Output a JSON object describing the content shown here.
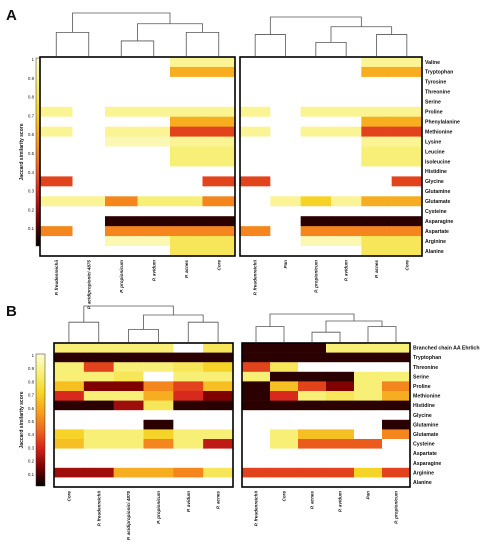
{
  "scale": {
    "title": "Jaccard similarity score",
    "ticks": [
      "1",
      "0.9",
      "0.8",
      "0.7",
      "0.6",
      "0.5",
      "0.4",
      "0.3",
      "0.2",
      "0.1"
    ],
    "colors": [
      "#000000",
      "#7a0000",
      "#d6221c",
      "#f06a1c",
      "#f7a21e",
      "#f5d828",
      "#f8f07a",
      "#fdfdd2"
    ]
  },
  "chart_data": [
    {
      "type": "heatmap",
      "panel": "A",
      "y": [
        "Valine",
        "Tryptophan",
        "Tyrosine",
        "Threonine",
        "Serine",
        "Proline",
        "Phenylalanine",
        "Methionine",
        "Lysine",
        "Leucine",
        "Isoleucine",
        "Histidine",
        "Glycine",
        "Glutamine",
        "Glutamate",
        "Cysteine",
        "Asparagine",
        "Aspartate",
        "Arginine",
        "Alanine"
      ],
      "heatmaps": [
        {
          "x": [
            "P. freudenreichii",
            "P. acidipropionici 4875",
            "P. propionicum",
            "P. avidum",
            "P. acnes",
            "Core"
          ],
          "values": [
            [
              0,
              0,
              0,
              0,
              0.9,
              0.9
            ],
            [
              0,
              0,
              0,
              0,
              0.6,
              0.6
            ],
            [
              0,
              0,
              0,
              0,
              0,
              0
            ],
            [
              0,
              0,
              0,
              0,
              0,
              0
            ],
            [
              0,
              0,
              0,
              0,
              0,
              0
            ],
            [
              0.9,
              0,
              0.9,
              0.9,
              0.9,
              0.9
            ],
            [
              0,
              0,
              0,
              0,
              0.6,
              0.6
            ],
            [
              0.9,
              0,
              0.9,
              0.9,
              0.35,
              0.35
            ],
            [
              0,
              0,
              0.95,
              0.95,
              0.9,
              0.9
            ],
            [
              0,
              0,
              0,
              0,
              0.85,
              0.85
            ],
            [
              0,
              0,
              0,
              0,
              0.85,
              0.85
            ],
            [
              0,
              0,
              0,
              0,
              0,
              0
            ],
            [
              0.35,
              0,
              0,
              0,
              0,
              0.35
            ],
            [
              0,
              0,
              0,
              0,
              0,
              0
            ],
            [
              0.9,
              0.9,
              0.5,
              0.85,
              0.85,
              0.5
            ],
            [
              0,
              0,
              0,
              0,
              0,
              0
            ],
            [
              0,
              0,
              0.05,
              0.05,
              0.05,
              0.05
            ],
            [
              0.5,
              0,
              0.5,
              0.5,
              0.5,
              0.5
            ],
            [
              0,
              0,
              0.95,
              0.95,
              0.8,
              0.8
            ],
            [
              0,
              0,
              0,
              0,
              0.8,
              0.8
            ]
          ]
        },
        {
          "x": [
            "P. freudenreichii",
            "Pan",
            "P. propionicum",
            "P. avidum",
            "P. acnes",
            "Core"
          ],
          "values": [
            [
              0,
              0,
              0,
              0,
              0.9,
              0.9
            ],
            [
              0,
              0,
              0,
              0,
              0.6,
              0.6
            ],
            [
              0,
              0,
              0,
              0,
              0,
              0
            ],
            [
              0,
              0,
              0,
              0,
              0,
              0
            ],
            [
              0,
              0,
              0,
              0,
              0,
              0
            ],
            [
              0.9,
              0,
              0.9,
              0.9,
              0.9,
              0.9
            ],
            [
              0,
              0,
              0,
              0,
              0.6,
              0.6
            ],
            [
              0.9,
              0,
              0.9,
              0.9,
              0.35,
              0.35
            ],
            [
              0,
              0,
              0,
              0,
              0.9,
              0.9
            ],
            [
              0,
              0,
              0,
              0,
              0.85,
              0.85
            ],
            [
              0,
              0,
              0,
              0,
              0.85,
              0.85
            ],
            [
              0,
              0,
              0,
              0,
              0,
              0
            ],
            [
              0.35,
              0,
              0,
              0,
              0,
              0.35
            ],
            [
              0,
              0,
              0,
              0,
              0,
              0
            ],
            [
              0,
              0.9,
              0.7,
              0.9,
              0.6,
              0.6
            ],
            [
              0,
              0,
              0,
              0,
              0,
              0
            ],
            [
              0,
              0,
              0.05,
              0.05,
              0.05,
              0.05
            ],
            [
              0.5,
              0,
              0.5,
              0.5,
              0.5,
              0.5
            ],
            [
              0,
              0,
              0.95,
              0.95,
              0.8,
              0.8
            ],
            [
              0,
              0,
              0,
              0,
              0.8,
              0.8
            ]
          ]
        }
      ]
    },
    {
      "type": "heatmap",
      "panel": "B",
      "y": [
        "Branched chain AA Ehrlich",
        "Tryptophan",
        "Threonine",
        "Serine",
        "Proline",
        "Methionine",
        "Histidine",
        "Glycine",
        "Glutamine",
        "Glutamate",
        "Cysteine",
        "Aspartate",
        "Asparagine",
        "Arginine",
        "Alanine"
      ],
      "heatmaps": [
        {
          "x": [
            "Core",
            "P. freudenreichii",
            "P. acidipropionici 4875",
            "P. propionicum",
            "P. avidum",
            "P. acnes"
          ],
          "values": [
            [
              0.85,
              0.85,
              0.85,
              0.85,
              0,
              0.8
            ],
            [
              0.05,
              0.05,
              0.05,
              0.05,
              0.05,
              0.05
            ],
            [
              0.85,
              0.35,
              0.85,
              0.85,
              0.8,
              0.7
            ],
            [
              0.85,
              0.85,
              0.8,
              0,
              0.85,
              0.85
            ],
            [
              0.65,
              0.15,
              0.15,
              0.5,
              0.35,
              0.65
            ],
            [
              0.3,
              0.85,
              0.85,
              0.6,
              0.3,
              0.15
            ],
            [
              0.05,
              0.05,
              0.2,
              0.8,
              0.05,
              0.05
            ],
            [
              0,
              0,
              0,
              0,
              0,
              0
            ],
            [
              0,
              0,
              0,
              0.05,
              0,
              0
            ],
            [
              0.7,
              0.85,
              0.85,
              0.7,
              0.85,
              0.85
            ],
            [
              0.65,
              0.85,
              0.85,
              0.5,
              0.85,
              0.25
            ],
            [
              0,
              0,
              0,
              0,
              0,
              0
            ],
            [
              0,
              0,
              0,
              0,
              0,
              0
            ],
            [
              0.2,
              0.2,
              0.6,
              0.6,
              0.5,
              0.8
            ],
            [
              0,
              0,
              0,
              0,
              0,
              0
            ]
          ]
        },
        {
          "x": [
            "P. freudenreichii",
            "Core",
            "P. acnes",
            "P. avidum",
            "Pan",
            "P. propionicum"
          ],
          "values": [
            [
              0.05,
              0.05,
              0.05,
              0.85,
              0.85,
              0.85
            ],
            [
              0.05,
              0.05,
              0.05,
              0.05,
              0.05,
              0.05
            ],
            [
              0.35,
              0.8,
              0,
              0,
              0,
              0
            ],
            [
              0.85,
              0.05,
              0.05,
              0.05,
              0.85,
              0.85
            ],
            [
              0.05,
              0.65,
              0.35,
              0.15,
              0.85,
              0.5
            ],
            [
              0.05,
              0.3,
              0.85,
              0.8,
              0.85,
              0.6
            ],
            [
              0.05,
              0.05,
              0.05,
              0.05,
              0.05,
              0.05
            ],
            [
              0,
              0,
              0,
              0,
              0,
              0
            ],
            [
              0,
              0,
              0,
              0,
              0,
              0.05
            ],
            [
              0,
              0.85,
              0.65,
              0.65,
              0,
              0.5
            ],
            [
              0,
              0.85,
              0.4,
              0.4,
              0.4,
              0
            ],
            [
              0,
              0,
              0,
              0,
              0,
              0
            ],
            [
              0,
              0,
              0,
              0,
              0,
              0
            ],
            [
              0.35,
              0.35,
              0.35,
              0.35,
              0.7,
              0.35
            ],
            [
              0,
              0,
              0,
              0,
              0,
              0
            ]
          ]
        }
      ]
    }
  ]
}
